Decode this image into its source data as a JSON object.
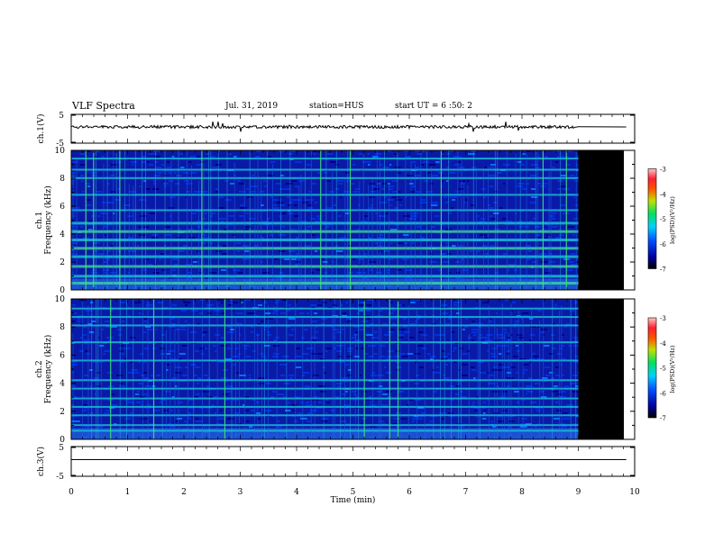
{
  "header": {
    "title": "VLF Spectra",
    "date": "Jul. 31, 2019",
    "station": "station=HUS",
    "start": "start UT =  6 :50: 2"
  },
  "colors": {
    "background": "#ffffff",
    "spectrogram_floor": "#0a1aa8",
    "no_data": "#000000",
    "line_emission": "#19c8d8",
    "impulse": "#3ee07a"
  },
  "chart_data": [
    {
      "type": "line",
      "panel": "ch1-waveform",
      "ylabel": "ch.1(V)",
      "ylim": [
        -5,
        5
      ],
      "yticks": [
        "5",
        "-5"
      ],
      "xlim": [
        0,
        10
      ],
      "data_end_min": 9.85,
      "description_values": {
        "baseline": 0
      }
    },
    {
      "type": "heatmap",
      "panel": "ch1-spectrogram",
      "ylabel_lines": [
        "ch.1",
        "Frequency (kHz)"
      ],
      "ylim": [
        0,
        10
      ],
      "yticks": [
        "0",
        "2",
        "4",
        "6",
        "8",
        "10"
      ],
      "xlim": [
        0,
        10
      ],
      "data_end_min": 9.0,
      "colorbar": {
        "min": -7,
        "max": -3,
        "ticks": [
          "-3",
          "-4",
          "-5",
          "-6",
          "-7"
        ],
        "label": "log(PSD)(V²/Hz)"
      },
      "line_bands_khz": [
        0.5,
        1.0,
        1.7,
        2.4,
        3.0,
        3.6,
        4.2,
        4.8,
        5.7,
        6.8,
        8.0,
        8.6,
        9.4
      ]
    },
    {
      "type": "heatmap",
      "panel": "ch2-spectrogram",
      "ylabel_lines": [
        "ch.2",
        "Frequency (kHz)"
      ],
      "ylim": [
        0,
        10
      ],
      "yticks": [
        "0",
        "2",
        "4",
        "6",
        "8",
        "10"
      ],
      "xlim": [
        0,
        10
      ],
      "data_end_min": 9.0,
      "colorbar": {
        "min": -7,
        "max": -3,
        "ticks": [
          "-3",
          "-4",
          "-5",
          "-6",
          "-7"
        ],
        "label": "log(PSD)(V²/Hz)"
      },
      "line_bands_khz": [
        0.6,
        1.0,
        1.7,
        2.3,
        2.9,
        3.6,
        4.2,
        5.6,
        6.9,
        8.1,
        8.7,
        9.3
      ]
    },
    {
      "type": "line",
      "panel": "ch3-waveform",
      "ylabel": "ch.3(V)",
      "ylim": [
        -5,
        5
      ],
      "yticks": [
        "5",
        "-5"
      ],
      "xlim": [
        0,
        10
      ],
      "data_end_min": 9.85,
      "xlabel": "Time (min)",
      "xticks": [
        "0",
        "1",
        "2",
        "3",
        "4",
        "5",
        "6",
        "7",
        "8",
        "9",
        "10"
      ],
      "description_values": {
        "baseline": 0
      }
    }
  ]
}
